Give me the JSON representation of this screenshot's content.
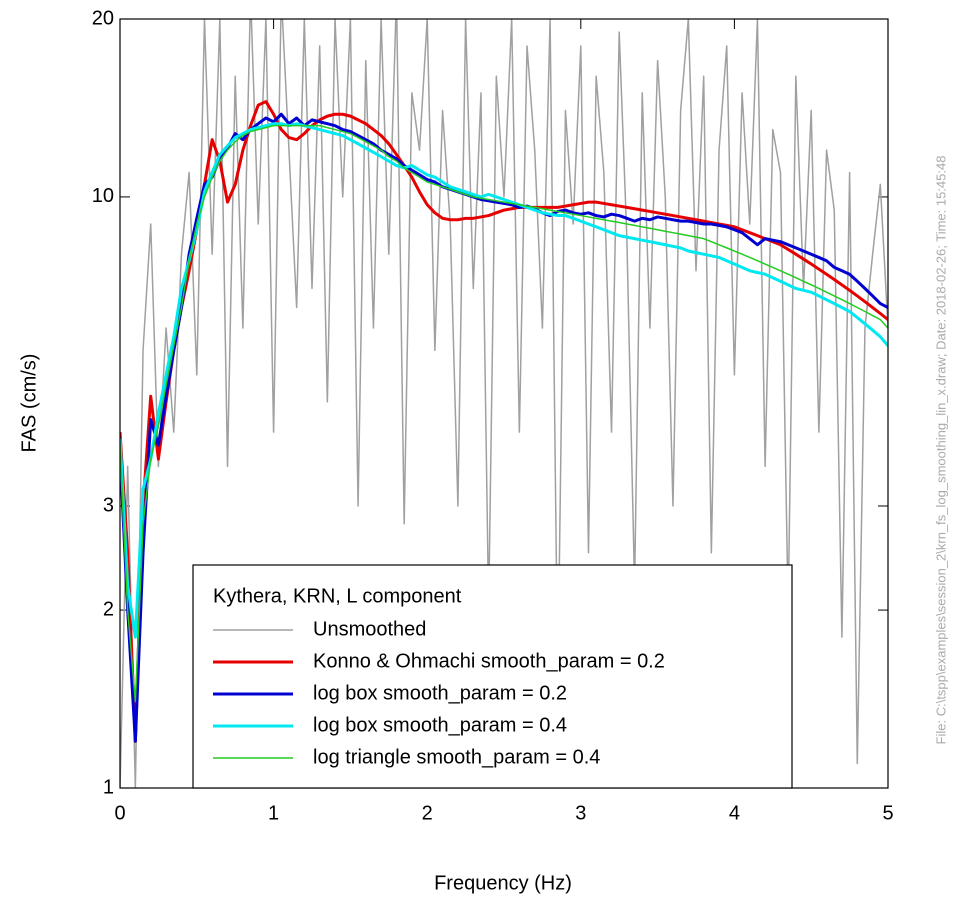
{
  "chart_data": {
    "type": "line",
    "x_label": "Frequency (Hz)",
    "y_label": "FAS (cm/s)",
    "footer": "File: C:\\tspp\\examples\\session_2\\krn_fs_log_smoothing_lin_x.draw; Date: 2018-02-26; Time: 15:45:48",
    "legend_title": "Kythera, KRN, L component",
    "legend_position": "lower center",
    "y_scale": "log",
    "grid": false,
    "xlim": [
      0,
      5
    ],
    "xticks": [
      0,
      1,
      2,
      3,
      4,
      5
    ],
    "ylim": [
      1,
      20
    ],
    "yticks": [
      1,
      2,
      3,
      10,
      20
    ],
    "x": [
      0,
      0.05,
      0.1,
      0.15,
      0.2,
      0.25,
      0.3,
      0.35,
      0.4,
      0.45,
      0.5,
      0.55,
      0.6,
      0.65,
      0.7,
      0.75,
      0.8,
      0.85,
      0.9,
      0.95,
      1,
      1.05,
      1.1,
      1.15,
      1.2,
      1.25,
      1.3,
      1.35,
      1.4,
      1.45,
      1.5,
      1.55,
      1.6,
      1.65,
      1.7,
      1.75,
      1.8,
      1.85,
      1.9,
      1.95,
      2,
      2.05,
      2.1,
      2.15,
      2.2,
      2.25,
      2.3,
      2.35,
      2.4,
      2.45,
      2.5,
      2.55,
      2.6,
      2.65,
      2.7,
      2.75,
      2.8,
      2.85,
      2.9,
      2.95,
      3,
      3.05,
      3.1,
      3.15,
      3.2,
      3.25,
      3.3,
      3.35,
      3.4,
      3.45,
      3.5,
      3.55,
      3.6,
      3.65,
      3.7,
      3.75,
      3.8,
      3.85,
      3.9,
      3.95,
      4,
      4.05,
      4.1,
      4.15,
      4.2,
      4.25,
      4.3,
      4.35,
      4.4,
      4.45,
      4.5,
      4.55,
      4.6,
      4.65,
      4.7,
      4.75,
      4.8,
      4.85,
      4.9,
      4.95,
      5
    ],
    "series": [
      {
        "name": "Unsmoothed",
        "color": "#a0a0a0",
        "width": 1.5,
        "values": [
          1.0,
          3.5,
          1.0,
          5.5,
          9.0,
          3.5,
          6.0,
          4.0,
          8.0,
          11.0,
          5.0,
          20,
          8.0,
          20,
          3.5,
          16,
          6.0,
          22,
          9.0,
          20,
          4.0,
          22,
          12,
          6.5,
          20,
          7.0,
          18,
          4.5,
          20,
          10,
          20,
          3.0,
          17,
          6.0,
          20,
          8.0,
          22,
          2.8,
          15,
          12,
          20,
          5.5,
          14,
          9.0,
          3.0,
          20,
          7.0,
          15,
          2.0,
          16,
          10,
          20,
          4.0,
          18,
          12,
          6.0,
          20,
          1.5,
          14,
          9.0,
          18,
          2.5,
          16,
          11,
          4.0,
          19,
          8.5,
          2.2,
          15,
          6.0,
          17,
          10,
          3.0,
          14,
          20,
          7.5,
          16,
          2.5,
          12,
          18,
          5.0,
          15,
          9.0,
          20,
          3.5,
          13,
          11,
          2.0,
          16,
          7.0,
          14,
          4.0,
          12,
          9.5,
          1.8,
          11,
          1.1,
          6.0,
          8.0,
          10.5,
          6.0
        ]
      },
      {
        "name": "Konno & Ohmachi smooth_param = 0.2",
        "color": "#e60000",
        "width": 3,
        "values": [
          4.0,
          2.5,
          1.2,
          3.0,
          4.6,
          3.6,
          4.5,
          5.5,
          6.5,
          7.5,
          8.8,
          10.5,
          12.5,
          11.5,
          9.8,
          10.5,
          12.0,
          13.2,
          14.3,
          14.5,
          13.8,
          13.0,
          12.6,
          12.5,
          12.8,
          13.2,
          13.5,
          13.7,
          13.8,
          13.8,
          13.7,
          13.5,
          13.3,
          13.0,
          12.7,
          12.3,
          11.8,
          11.3,
          10.8,
          10.2,
          9.7,
          9.4,
          9.2,
          9.15,
          9.15,
          9.2,
          9.2,
          9.25,
          9.3,
          9.4,
          9.5,
          9.55,
          9.6,
          9.6,
          9.6,
          9.6,
          9.6,
          9.6,
          9.65,
          9.7,
          9.75,
          9.8,
          9.8,
          9.75,
          9.7,
          9.65,
          9.6,
          9.55,
          9.5,
          9.45,
          9.4,
          9.35,
          9.3,
          9.25,
          9.2,
          9.15,
          9.1,
          9.05,
          9.0,
          8.95,
          8.9,
          8.8,
          8.7,
          8.6,
          8.5,
          8.4,
          8.3,
          8.15,
          8.0,
          7.85,
          7.7,
          7.55,
          7.4,
          7.25,
          7.1,
          6.95,
          6.8,
          6.65,
          6.5,
          6.35,
          6.2
        ]
      },
      {
        "name": "log box smooth_param = 0.2",
        "color": "#0000d0",
        "width": 3,
        "values": [
          3.7,
          2.0,
          1.2,
          2.5,
          4.2,
          3.8,
          4.6,
          5.5,
          6.5,
          8.0,
          9.2,
          10.5,
          10.8,
          11.6,
          12.1,
          12.8,
          12.5,
          13.0,
          13.3,
          13.6,
          13.4,
          13.8,
          13.3,
          13.6,
          13.2,
          13.5,
          13.4,
          13.3,
          13.2,
          13.0,
          12.9,
          12.7,
          12.5,
          12.3,
          12.0,
          11.8,
          11.6,
          11.3,
          11.1,
          10.9,
          10.7,
          10.6,
          10.4,
          10.3,
          10.2,
          10.1,
          10.0,
          9.9,
          9.85,
          9.8,
          9.75,
          9.7,
          9.6,
          9.65,
          9.55,
          9.4,
          9.3,
          9.45,
          9.5,
          9.4,
          9.35,
          9.4,
          9.3,
          9.25,
          9.35,
          9.3,
          9.2,
          9.1,
          9.2,
          9.15,
          9.25,
          9.2,
          9.15,
          9.1,
          9.1,
          9.05,
          9.0,
          9.0,
          8.95,
          8.9,
          8.8,
          8.7,
          8.5,
          8.3,
          8.5,
          8.45,
          8.4,
          8.3,
          8.2,
          8.1,
          8.0,
          7.9,
          7.8,
          7.6,
          7.5,
          7.4,
          7.2,
          7.0,
          6.8,
          6.6,
          6.5
        ]
      },
      {
        "name": "log box smooth_param = 0.4",
        "color": "#00e8f0",
        "width": 3,
        "values": [
          3.9,
          2.2,
          1.8,
          3.2,
          3.6,
          4.3,
          5.0,
          5.8,
          7.0,
          7.8,
          8.8,
          10.2,
          11.0,
          11.8,
          12.2,
          12.6,
          12.8,
          13.0,
          13.1,
          13.2,
          13.3,
          13.3,
          13.2,
          13.3,
          13.2,
          13.1,
          13.0,
          12.9,
          12.8,
          12.7,
          12.5,
          12.3,
          12.1,
          11.9,
          11.7,
          11.5,
          11.3,
          11.2,
          11.3,
          11.1,
          10.9,
          10.8,
          10.6,
          10.4,
          10.3,
          10.2,
          10.1,
          10.0,
          10.1,
          10.0,
          9.9,
          9.8,
          9.7,
          9.6,
          9.5,
          9.4,
          9.35,
          9.3,
          9.3,
          9.2,
          9.1,
          9.0,
          8.9,
          8.8,
          8.7,
          8.6,
          8.55,
          8.5,
          8.45,
          8.4,
          8.35,
          8.3,
          8.25,
          8.2,
          8.1,
          8.05,
          8.0,
          7.95,
          7.9,
          7.8,
          7.7,
          7.6,
          7.5,
          7.45,
          7.4,
          7.3,
          7.2,
          7.1,
          7.0,
          6.95,
          6.9,
          6.8,
          6.7,
          6.6,
          6.5,
          6.4,
          6.25,
          6.1,
          5.95,
          5.8,
          5.6
        ]
      },
      {
        "name": "log triangle smooth_param = 0.4",
        "color": "#22cc22",
        "width": 1.5,
        "values": [
          3.8,
          2.0,
          1.4,
          2.8,
          3.6,
          4.1,
          4.8,
          5.6,
          6.5,
          7.8,
          9.0,
          10.0,
          10.8,
          11.5,
          12.0,
          12.4,
          12.7,
          12.9,
          13.0,
          13.1,
          13.2,
          13.2,
          13.2,
          13.2,
          13.2,
          13.2,
          13.2,
          13.1,
          13.0,
          12.9,
          12.8,
          12.6,
          12.4,
          12.2,
          12.0,
          11.7,
          11.5,
          11.2,
          11.0,
          10.8,
          10.6,
          10.5,
          10.4,
          10.3,
          10.2,
          10.1,
          10.0,
          9.95,
          9.9,
          9.85,
          9.8,
          9.75,
          9.7,
          9.65,
          9.6,
          9.55,
          9.5,
          9.45,
          9.4,
          9.35,
          9.3,
          9.25,
          9.2,
          9.15,
          9.1,
          9.05,
          9.0,
          8.95,
          8.9,
          8.85,
          8.8,
          8.75,
          8.7,
          8.65,
          8.6,
          8.55,
          8.5,
          8.4,
          8.3,
          8.2,
          8.1,
          8.0,
          7.9,
          7.8,
          7.7,
          7.6,
          7.5,
          7.4,
          7.3,
          7.2,
          7.1,
          7.0,
          6.9,
          6.8,
          6.7,
          6.6,
          6.5,
          6.4,
          6.3,
          6.2,
          6.0
        ]
      }
    ]
  }
}
